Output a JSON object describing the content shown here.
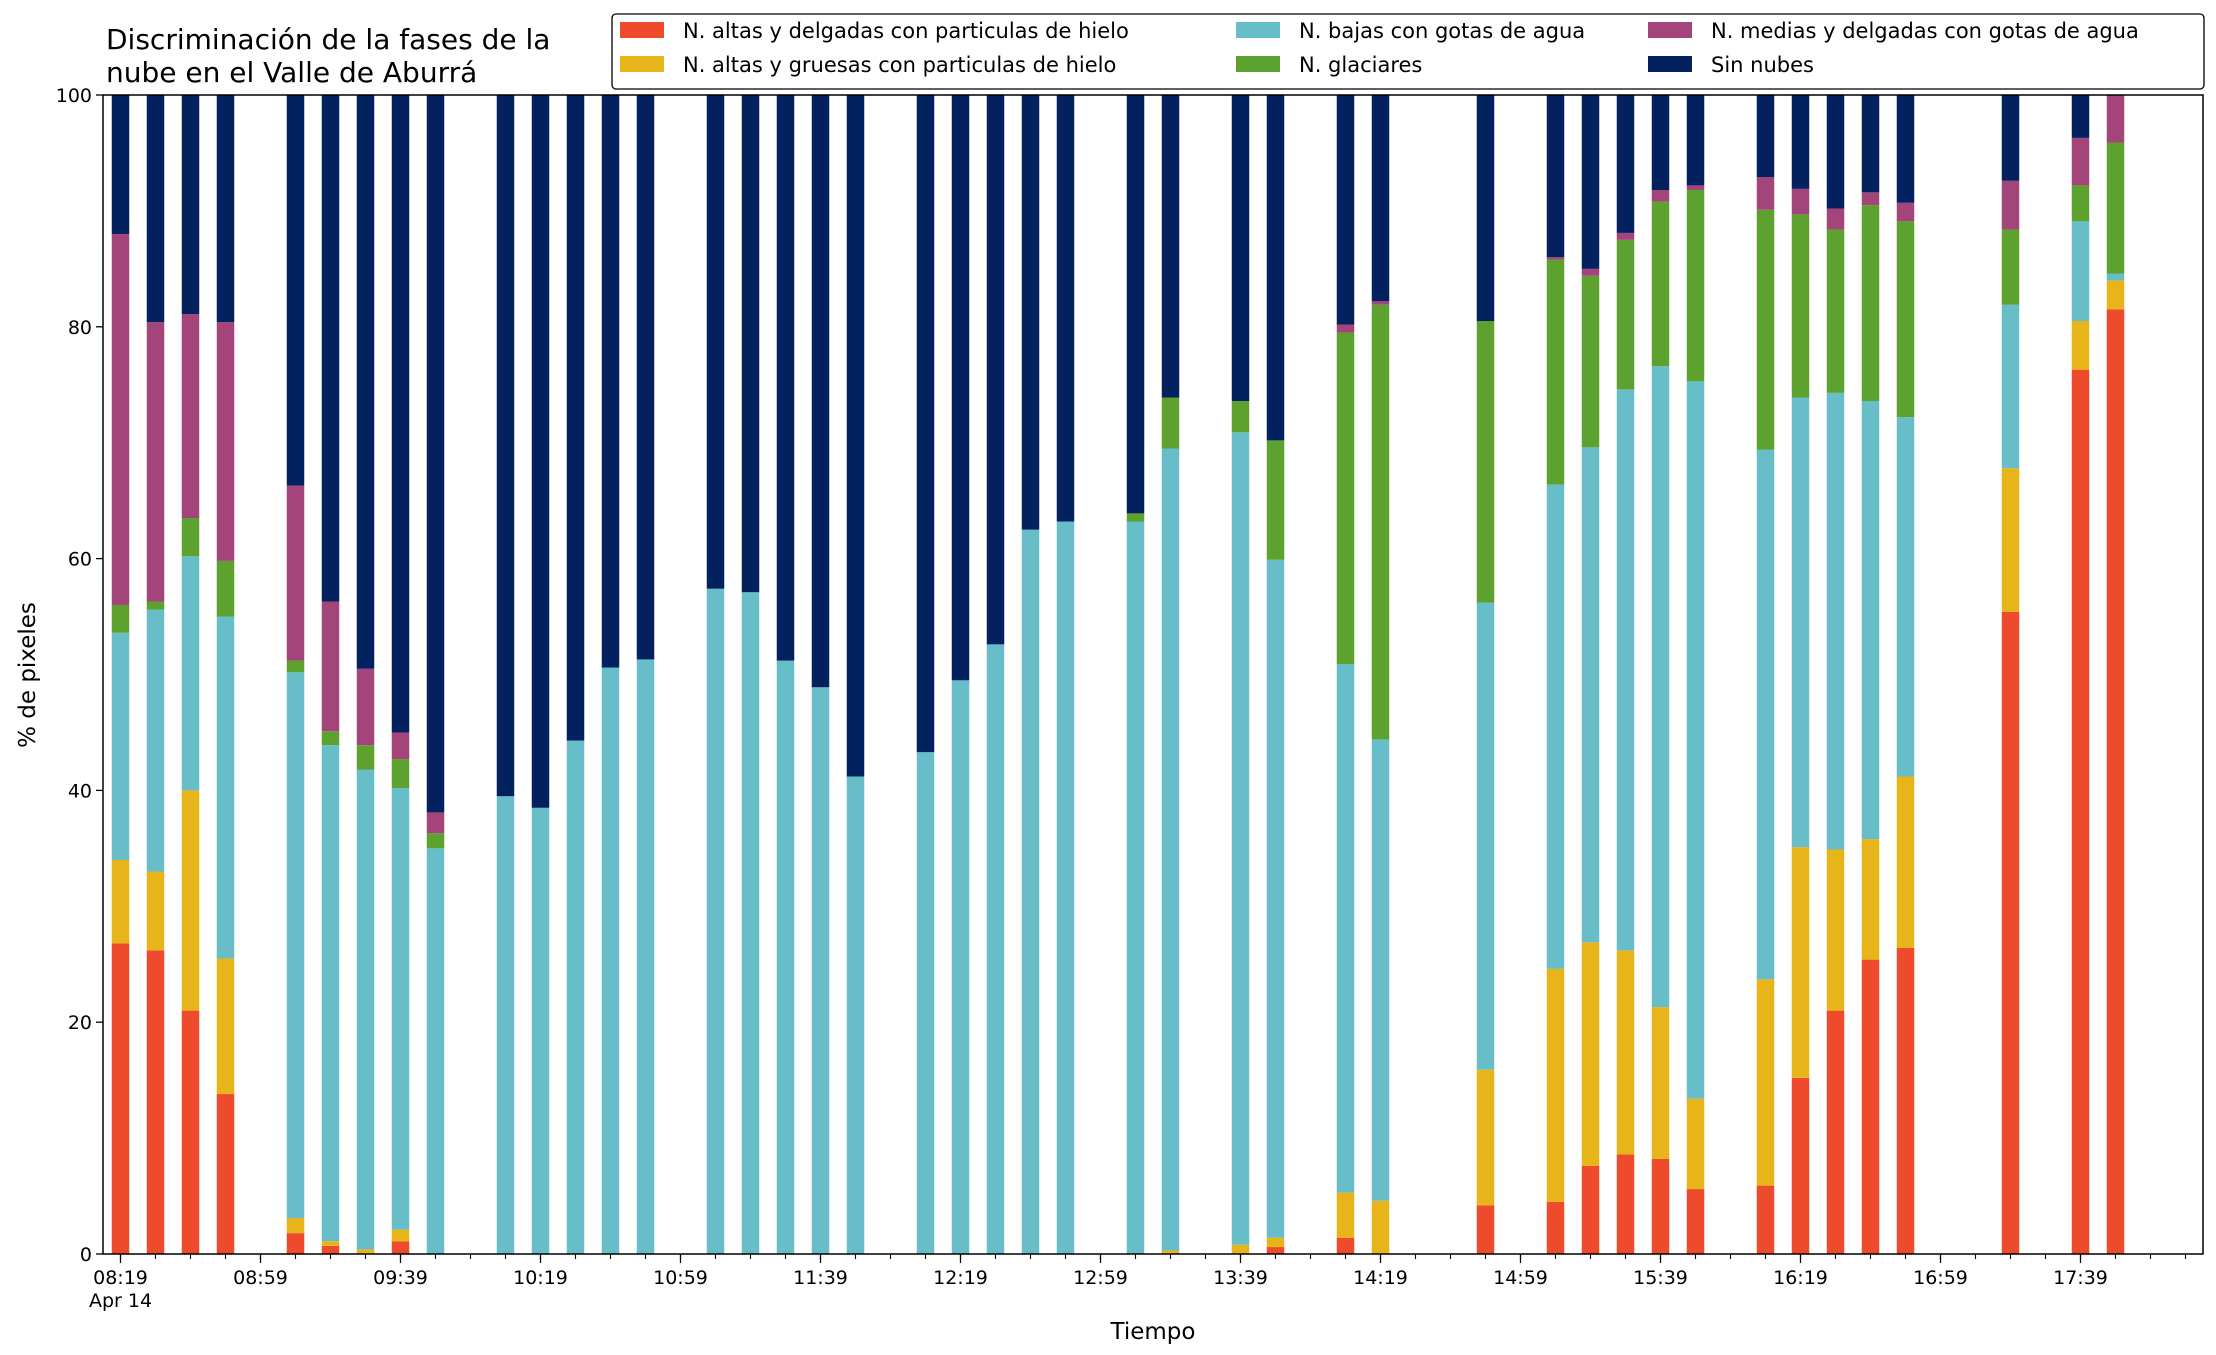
{
  "chart_data": {
    "type": "bar",
    "stacked": true,
    "title": "Discriminación de la fases de la\nnube en el Valle de Aburrá",
    "xlabel": "Tiempo",
    "ylabel": "% de pixeles",
    "ylim": [
      0,
      100
    ],
    "yticks": [
      "0",
      "20",
      "40",
      "60",
      "80",
      "100"
    ],
    "xlim": [
      "08:14",
      "18:14"
    ],
    "xtick_labels": [
      "08:19",
      "08:59",
      "09:39",
      "10:19",
      "10:59",
      "11:39",
      "12:19",
      "12:59",
      "13:39",
      "14:19",
      "14:59",
      "15:39",
      "16:19",
      "16:59",
      "17:39"
    ],
    "xdate_label": "Apr 14",
    "grid": false,
    "legend_position": "top-right",
    "legend": [
      {
        "name": "N. altas y delgadas con particulas de hielo",
        "color": "#ee4a2c"
      },
      {
        "name": "N. altas y gruesas con particulas de hielo",
        "color": "#e7b419"
      },
      {
        "name": "N. bajas con gotas de agua",
        "color": "#67bdc8"
      },
      {
        "name": "N. glaciares",
        "color": "#5da12e"
      },
      {
        "name": "N. medias y delgadas con gotas de agua",
        "color": "#a3457b"
      },
      {
        "name": "Sin nubes",
        "color": "#03215f"
      }
    ],
    "series_keys": [
      "altas_delgadas",
      "altas_gruesas",
      "bajas_agua",
      "glaciares",
      "medias_delgadas",
      "sin_nubes"
    ],
    "bars": [
      {
        "time": "08:19",
        "altas_delgadas": 26.8,
        "altas_gruesas": 7.2,
        "bajas_agua": 19.6,
        "glaciares": 2.4,
        "medias_delgadas": 32.0,
        "sin_nubes": 12.0
      },
      {
        "time": "08:29",
        "altas_delgadas": 26.2,
        "altas_gruesas": 6.8,
        "bajas_agua": 22.6,
        "glaciares": 0.7,
        "medias_delgadas": 24.1,
        "sin_nubes": 19.6
      },
      {
        "time": "08:39",
        "altas_delgadas": 21.0,
        "altas_gruesas": 19.0,
        "bajas_agua": 20.2,
        "glaciares": 3.3,
        "medias_delgadas": 17.6,
        "sin_nubes": 18.9
      },
      {
        "time": "08:49",
        "altas_delgadas": 13.8,
        "altas_gruesas": 11.7,
        "bajas_agua": 29.5,
        "glaciares": 4.8,
        "medias_delgadas": 20.6,
        "sin_nubes": 19.6
      },
      {
        "time": "09:09",
        "altas_delgadas": 1.8,
        "altas_gruesas": 1.3,
        "bajas_agua": 47.1,
        "glaciares": 1.0,
        "medias_delgadas": 15.1,
        "sin_nubes": 33.7
      },
      {
        "time": "09:19",
        "altas_delgadas": 0.7,
        "altas_gruesas": 0.4,
        "bajas_agua": 42.8,
        "glaciares": 1.2,
        "medias_delgadas": 11.2,
        "sin_nubes": 43.7
      },
      {
        "time": "09:29",
        "altas_delgadas": 0.0,
        "altas_gruesas": 0.4,
        "bajas_agua": 41.4,
        "glaciares": 2.1,
        "medias_delgadas": 6.6,
        "sin_nubes": 49.5
      },
      {
        "time": "09:39",
        "altas_delgadas": 1.1,
        "altas_gruesas": 1.0,
        "bajas_agua": 38.1,
        "glaciares": 2.5,
        "medias_delgadas": 2.3,
        "sin_nubes": 55.0
      },
      {
        "time": "09:49",
        "altas_delgadas": 0.0,
        "altas_gruesas": 0.0,
        "bajas_agua": 35.0,
        "glaciares": 1.3,
        "medias_delgadas": 1.8,
        "sin_nubes": 61.9
      },
      {
        "time": "10:09",
        "altas_delgadas": 0.0,
        "altas_gruesas": 0.0,
        "bajas_agua": 39.5,
        "glaciares": 0.0,
        "medias_delgadas": 0.0,
        "sin_nubes": 60.5
      },
      {
        "time": "10:19",
        "altas_delgadas": 0.0,
        "altas_gruesas": 0.0,
        "bajas_agua": 38.5,
        "glaciares": 0.0,
        "medias_delgadas": 0.0,
        "sin_nubes": 61.5
      },
      {
        "time": "10:29",
        "altas_delgadas": 0.0,
        "altas_gruesas": 0.0,
        "bajas_agua": 44.3,
        "glaciares": 0.0,
        "medias_delgadas": 0.0,
        "sin_nubes": 55.7
      },
      {
        "time": "10:39",
        "altas_delgadas": 0.0,
        "altas_gruesas": 0.0,
        "bajas_agua": 50.6,
        "glaciares": 0.0,
        "medias_delgadas": 0.0,
        "sin_nubes": 49.4
      },
      {
        "time": "10:49",
        "altas_delgadas": 0.0,
        "altas_gruesas": 0.0,
        "bajas_agua": 51.3,
        "glaciares": 0.0,
        "medias_delgadas": 0.0,
        "sin_nubes": 48.7
      },
      {
        "time": "11:09",
        "altas_delgadas": 0.0,
        "altas_gruesas": 0.0,
        "bajas_agua": 57.4,
        "glaciares": 0.0,
        "medias_delgadas": 0.0,
        "sin_nubes": 42.6
      },
      {
        "time": "11:19",
        "altas_delgadas": 0.0,
        "altas_gruesas": 0.0,
        "bajas_agua": 57.1,
        "glaciares": 0.0,
        "medias_delgadas": 0.0,
        "sin_nubes": 42.9
      },
      {
        "time": "11:29",
        "altas_delgadas": 0.0,
        "altas_gruesas": 0.0,
        "bajas_agua": 51.2,
        "glaciares": 0.0,
        "medias_delgadas": 0.0,
        "sin_nubes": 48.8
      },
      {
        "time": "11:39",
        "altas_delgadas": 0.0,
        "altas_gruesas": 0.0,
        "bajas_agua": 48.9,
        "glaciares": 0.0,
        "medias_delgadas": 0.0,
        "sin_nubes": 51.1
      },
      {
        "time": "11:49",
        "altas_delgadas": 0.0,
        "altas_gruesas": 0.0,
        "bajas_agua": 41.2,
        "glaciares": 0.0,
        "medias_delgadas": 0.0,
        "sin_nubes": 58.8
      },
      {
        "time": "12:09",
        "altas_delgadas": 0.0,
        "altas_gruesas": 0.0,
        "bajas_agua": 43.3,
        "glaciares": 0.0,
        "medias_delgadas": 0.0,
        "sin_nubes": 56.7
      },
      {
        "time": "12:19",
        "altas_delgadas": 0.0,
        "altas_gruesas": 0.0,
        "bajas_agua": 49.5,
        "glaciares": 0.0,
        "medias_delgadas": 0.0,
        "sin_nubes": 50.5
      },
      {
        "time": "12:29",
        "altas_delgadas": 0.0,
        "altas_gruesas": 0.0,
        "bajas_agua": 52.6,
        "glaciares": 0.0,
        "medias_delgadas": 0.0,
        "sin_nubes": 47.4
      },
      {
        "time": "12:39",
        "altas_delgadas": 0.0,
        "altas_gruesas": 0.0,
        "bajas_agua": 62.5,
        "glaciares": 0.0,
        "medias_delgadas": 0.0,
        "sin_nubes": 37.5
      },
      {
        "time": "12:49",
        "altas_delgadas": 0.0,
        "altas_gruesas": 0.0,
        "bajas_agua": 63.2,
        "glaciares": 0.0,
        "medias_delgadas": 0.0,
        "sin_nubes": 36.8
      },
      {
        "time": "13:09",
        "altas_delgadas": 0.0,
        "altas_gruesas": 0.0,
        "bajas_agua": 63.2,
        "glaciares": 0.7,
        "medias_delgadas": 0.0,
        "sin_nubes": 36.1
      },
      {
        "time": "13:19",
        "altas_delgadas": 0.0,
        "altas_gruesas": 0.3,
        "bajas_agua": 69.2,
        "glaciares": 4.4,
        "medias_delgadas": 0.0,
        "sin_nubes": 26.1
      },
      {
        "time": "13:39",
        "altas_delgadas": 0.0,
        "altas_gruesas": 0.8,
        "bajas_agua": 70.1,
        "glaciares": 2.7,
        "medias_delgadas": 0.0,
        "sin_nubes": 26.4
      },
      {
        "time": "13:49",
        "altas_delgadas": 0.6,
        "altas_gruesas": 0.8,
        "bajas_agua": 58.5,
        "glaciares": 10.3,
        "medias_delgadas": 0.0,
        "sin_nubes": 29.8
      },
      {
        "time": "14:09",
        "altas_delgadas": 1.4,
        "altas_gruesas": 3.9,
        "bajas_agua": 45.6,
        "glaciares": 28.6,
        "medias_delgadas": 0.7,
        "sin_nubes": 19.8
      },
      {
        "time": "14:19",
        "altas_delgadas": 0.0,
        "altas_gruesas": 4.6,
        "bajas_agua": 39.8,
        "glaciares": 37.5,
        "medias_delgadas": 0.3,
        "sin_nubes": 17.8
      },
      {
        "time": "14:49",
        "altas_delgadas": 4.2,
        "altas_gruesas": 11.7,
        "bajas_agua": 40.3,
        "glaciares": 24.3,
        "medias_delgadas": 0.0,
        "sin_nubes": 19.5
      },
      {
        "time": "15:09",
        "altas_delgadas": 4.5,
        "altas_gruesas": 20.1,
        "bajas_agua": 41.8,
        "glaciares": 19.4,
        "medias_delgadas": 0.2,
        "sin_nubes": 14.0
      },
      {
        "time": "15:19",
        "altas_delgadas": 7.6,
        "altas_gruesas": 19.3,
        "bajas_agua": 42.7,
        "glaciares": 14.8,
        "medias_delgadas": 0.6,
        "sin_nubes": 15.0
      },
      {
        "time": "15:29",
        "altas_delgadas": 8.6,
        "altas_gruesas": 17.6,
        "bajas_agua": 48.4,
        "glaciares": 12.9,
        "medias_delgadas": 0.6,
        "sin_nubes": 11.9
      },
      {
        "time": "15:39",
        "altas_delgadas": 8.2,
        "altas_gruesas": 13.1,
        "bajas_agua": 55.3,
        "glaciares": 14.2,
        "medias_delgadas": 1.0,
        "sin_nubes": 8.2
      },
      {
        "time": "15:49",
        "altas_delgadas": 5.6,
        "altas_gruesas": 7.8,
        "bajas_agua": 61.9,
        "glaciares": 16.5,
        "medias_delgadas": 0.4,
        "sin_nubes": 7.8
      },
      {
        "time": "16:09",
        "altas_delgadas": 5.9,
        "altas_gruesas": 17.8,
        "bajas_agua": 45.7,
        "glaciares": 20.7,
        "medias_delgadas": 2.8,
        "sin_nubes": 7.1
      },
      {
        "time": "16:19",
        "altas_delgadas": 15.2,
        "altas_gruesas": 19.9,
        "bajas_agua": 38.8,
        "glaciares": 15.8,
        "medias_delgadas": 2.2,
        "sin_nubes": 8.1
      },
      {
        "time": "16:29",
        "altas_delgadas": 21.0,
        "altas_gruesas": 13.9,
        "bajas_agua": 39.4,
        "glaciares": 14.1,
        "medias_delgadas": 1.8,
        "sin_nubes": 9.8
      },
      {
        "time": "16:39",
        "altas_delgadas": 25.4,
        "altas_gruesas": 10.4,
        "bajas_agua": 37.8,
        "glaciares": 16.9,
        "medias_delgadas": 1.1,
        "sin_nubes": 8.4
      },
      {
        "time": "16:49",
        "altas_delgadas": 26.4,
        "altas_gruesas": 14.8,
        "bajas_agua": 31.0,
        "glaciares": 16.9,
        "medias_delgadas": 1.6,
        "sin_nubes": 9.3
      },
      {
        "time": "17:19",
        "altas_delgadas": 55.4,
        "altas_gruesas": 12.4,
        "bajas_agua": 14.1,
        "glaciares": 6.5,
        "medias_delgadas": 4.2,
        "sin_nubes": 7.4
      },
      {
        "time": "17:39",
        "altas_delgadas": 76.3,
        "altas_gruesas": 4.2,
        "bajas_agua": 8.6,
        "glaciares": 3.1,
        "medias_delgadas": 4.1,
        "sin_nubes": 3.7
      },
      {
        "time": "17:49",
        "altas_delgadas": 81.5,
        "altas_gruesas": 2.5,
        "bajas_agua": 0.6,
        "glaciares": 11.3,
        "medias_delgadas": 4.1,
        "sin_nubes": 0.0
      }
    ]
  }
}
